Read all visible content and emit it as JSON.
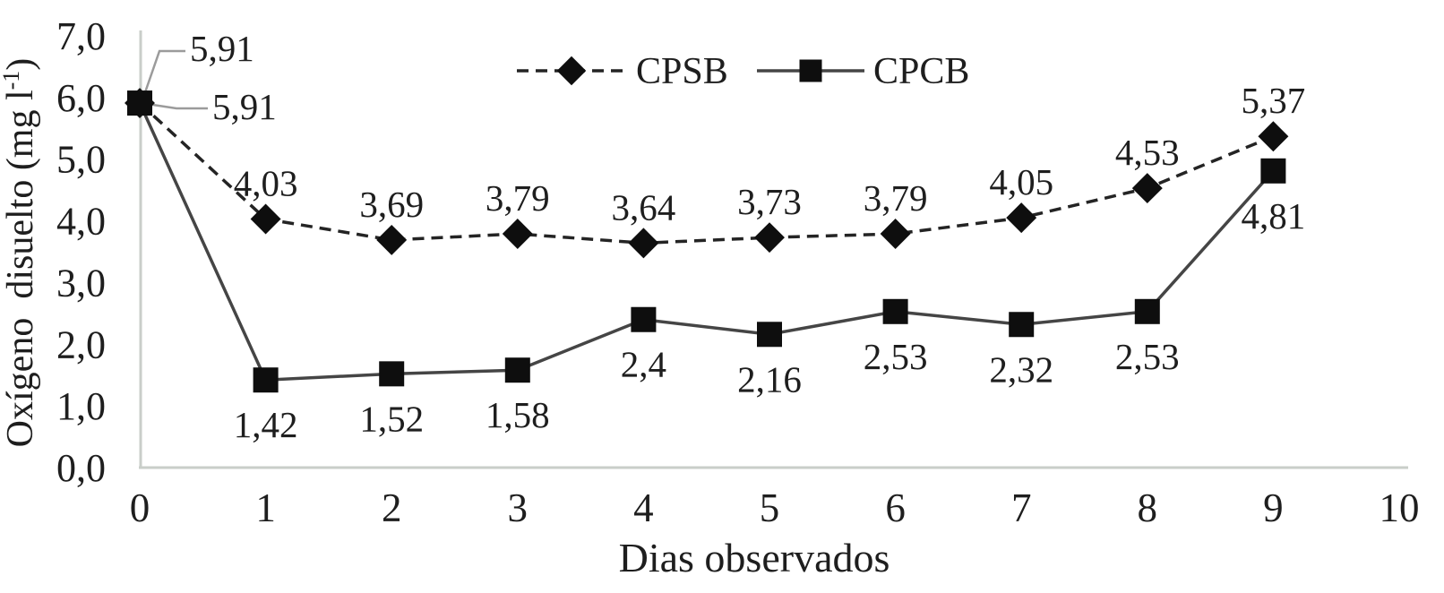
{
  "figure": {
    "background": "#ffffff"
  },
  "chart_data": {
    "type": "line",
    "title": "",
    "xlabel": "Dias observados",
    "ylabel": "Oxígeno  disuelto (mg l⁻¹)",
    "ylabel_parts": {
      "prefix": "Oxígeno  disuelto (mg l",
      "sup": "-1",
      "suffix": ")"
    },
    "x": [
      0,
      1,
      2,
      3,
      4,
      5,
      6,
      7,
      8,
      9
    ],
    "xlim": [
      0,
      10
    ],
    "ylim": [
      0.0,
      7.0
    ],
    "x_ticks": [
      "0",
      "1",
      "2",
      "3",
      "4",
      "5",
      "6",
      "7",
      "8",
      "9",
      "10"
    ],
    "y_ticks": [
      "0,0",
      "1,0",
      "2,0",
      "3,0",
      "4,0",
      "5,0",
      "6,0",
      "7,0"
    ],
    "grid": false,
    "decimal_separator": ",",
    "legend": {
      "position": "top-center",
      "entries": [
        "CPSB",
        "CPCB"
      ]
    },
    "series": [
      {
        "name": "CPSB",
        "line_style": "dashed",
        "marker": "diamond",
        "label_position": "above",
        "values": [
          5.91,
          4.03,
          3.69,
          3.79,
          3.64,
          3.73,
          3.79,
          4.05,
          4.53,
          5.37
        ],
        "labels": [
          "5,91",
          "4,03",
          "3,69",
          "3,79",
          "3,64",
          "3,73",
          "3,79",
          "4,05",
          "4,53",
          "5,37"
        ]
      },
      {
        "name": "CPCB",
        "line_style": "solid",
        "marker": "square",
        "label_position": "below",
        "values": [
          5.91,
          1.42,
          1.52,
          1.58,
          2.4,
          2.16,
          2.53,
          2.32,
          2.53,
          4.81
        ],
        "labels": [
          "5,91",
          "1,42",
          "1,52",
          "1,58",
          "2,4",
          "2,16",
          "2,53",
          "2,32",
          "2,53",
          "4,81"
        ]
      }
    ],
    "day0_callouts": [
      {
        "series": "CPSB",
        "label": "5,91"
      },
      {
        "series": "CPCB",
        "label": "5,91"
      }
    ],
    "colors": {
      "cpsb_line": "#242424",
      "cpcb_line": "#454545",
      "marker": "#0e0e0e",
      "axis": "#c9cec9",
      "text": "#1e1e1e",
      "leader": "#9b9b9b"
    }
  }
}
